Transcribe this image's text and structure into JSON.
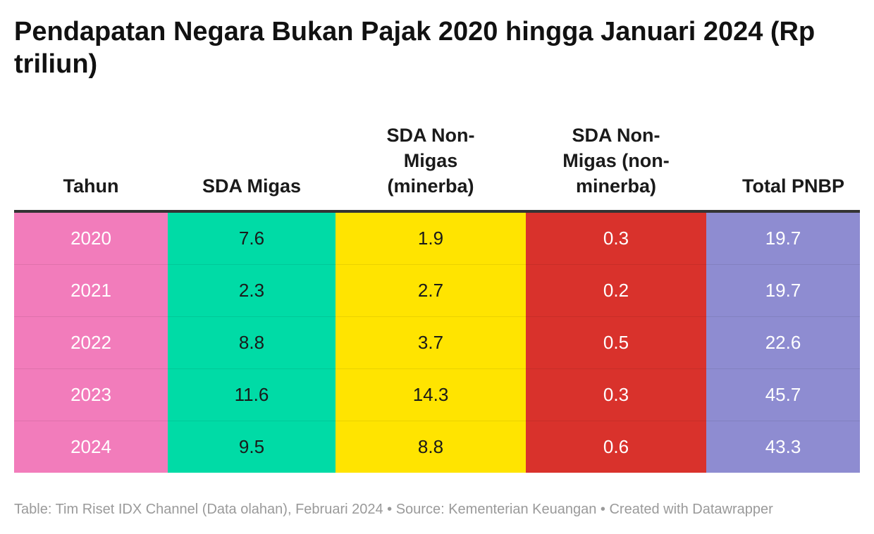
{
  "title": "Pendapatan Negara Bukan Pajak 2020 hingga Januari 2024 (Rp triliun)",
  "columns": [
    "Tahun",
    "SDA Migas",
    "SDA Non-Migas (minerba)",
    "SDA Non-Migas (non-minerba)",
    "Total PNBP"
  ],
  "column_colors": [
    "#f27cbb",
    "#00dba6",
    "#ffe400",
    "#d9322c",
    "#8e8cd1"
  ],
  "rows": [
    [
      "2020",
      "7.6",
      "1.9",
      "0.3",
      "19.7"
    ],
    [
      "2021",
      "2.3",
      "2.7",
      "0.2",
      "19.7"
    ],
    [
      "2022",
      "8.8",
      "3.7",
      "0.5",
      "22.6"
    ],
    [
      "2023",
      "11.6",
      "14.3",
      "0.3",
      "45.7"
    ],
    [
      "2024",
      "9.5",
      "8.8",
      "0.6",
      "43.3"
    ]
  ],
  "footer": "Table: Tim Riset IDX Channel (Data olahan), Februari 2024 • Source: Kementerian Keuangan • Created with Datawrapper",
  "chart_data": {
    "type": "table",
    "title": "Pendapatan Negara Bukan Pajak 2020 hingga Januari 2024 (Rp triliun)",
    "categories": [
      "2020",
      "2021",
      "2022",
      "2023",
      "2024"
    ],
    "series": [
      {
        "name": "SDA Migas",
        "values": [
          7.6,
          2.3,
          8.8,
          11.6,
          9.5
        ]
      },
      {
        "name": "SDA Non-Migas (minerba)",
        "values": [
          1.9,
          2.7,
          3.7,
          14.3,
          8.8
        ]
      },
      {
        "name": "SDA Non-Migas (non-minerba)",
        "values": [
          0.3,
          0.2,
          0.5,
          0.3,
          0.6
        ]
      },
      {
        "name": "Total PNBP",
        "values": [
          19.7,
          19.7,
          22.6,
          45.7,
          43.3
        ]
      }
    ]
  }
}
